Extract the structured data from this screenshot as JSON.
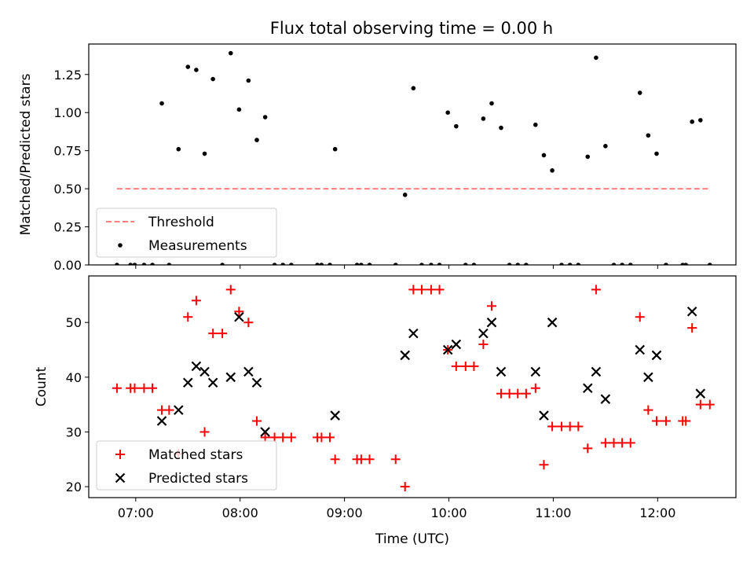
{
  "title": "Flux total observing time = 0.00 h",
  "chart_data": [
    {
      "type": "scatter",
      "ylabel": "Matched/Predicted stars",
      "xlim": [
        6.55,
        12.75
      ],
      "ylim": [
        0,
        1.45
      ],
      "yticks": [
        0.0,
        0.25,
        0.5,
        0.75,
        1.0,
        1.25
      ],
      "ytick_labels": [
        "0.00",
        "0.25",
        "0.50",
        "0.75",
        "1.00",
        "1.25"
      ],
      "legend": {
        "position": "lower-left",
        "entries": [
          "Threshold",
          "Measurements"
        ]
      },
      "threshold": {
        "name": "Threshold",
        "value": 0.5,
        "x_range": [
          6.82,
          12.5
        ],
        "color": "#ff7f7f"
      },
      "series": [
        {
          "name": "Measurements",
          "color": "#000000",
          "points": [
            [
              6.82,
              0
            ],
            [
              6.95,
              0
            ],
            [
              6.99,
              0
            ],
            [
              7.08,
              0
            ],
            [
              7.16,
              0
            ],
            [
              7.25,
              1.06
            ],
            [
              7.32,
              0
            ],
            [
              7.41,
              0.76
            ],
            [
              7.5,
              1.3
            ],
            [
              7.58,
              1.28
            ],
            [
              7.66,
              0.73
            ],
            [
              7.74,
              1.22
            ],
            [
              7.83,
              0
            ],
            [
              7.91,
              1.39
            ],
            [
              7.99,
              1.02
            ],
            [
              8.08,
              1.21
            ],
            [
              8.16,
              0.82
            ],
            [
              8.24,
              0.97
            ],
            [
              8.33,
              0
            ],
            [
              8.41,
              0
            ],
            [
              8.49,
              0
            ],
            [
              8.74,
              0
            ],
            [
              8.78,
              0
            ],
            [
              8.86,
              0
            ],
            [
              8.91,
              0.76
            ],
            [
              9.12,
              0
            ],
            [
              9.16,
              0
            ],
            [
              9.24,
              0
            ],
            [
              9.49,
              0
            ],
            [
              9.58,
              0.46
            ],
            [
              9.66,
              1.16
            ],
            [
              9.74,
              0
            ],
            [
              9.83,
              0
            ],
            [
              9.91,
              0
            ],
            [
              9.99,
              1.0
            ],
            [
              10.07,
              0.91
            ],
            [
              10.16,
              0
            ],
            [
              10.24,
              0
            ],
            [
              10.33,
              0.96
            ],
            [
              10.41,
              1.06
            ],
            [
              10.5,
              0.9
            ],
            [
              10.58,
              0
            ],
            [
              10.66,
              0
            ],
            [
              10.74,
              0
            ],
            [
              10.83,
              0.92
            ],
            [
              10.91,
              0.72
            ],
            [
              10.99,
              0.62
            ],
            [
              11.08,
              0
            ],
            [
              11.16,
              0
            ],
            [
              11.24,
              0
            ],
            [
              11.33,
              0.71
            ],
            [
              11.41,
              1.36
            ],
            [
              11.5,
              0.78
            ],
            [
              11.58,
              0
            ],
            [
              11.66,
              0
            ],
            [
              11.74,
              0
            ],
            [
              11.83,
              1.13
            ],
            [
              11.91,
              0.85
            ],
            [
              11.99,
              0.73
            ],
            [
              12.08,
              0
            ],
            [
              12.24,
              0
            ],
            [
              12.27,
              0
            ],
            [
              12.33,
              0.94
            ],
            [
              12.41,
              0.95
            ],
            [
              12.5,
              0
            ]
          ]
        }
      ]
    },
    {
      "type": "scatter",
      "xlabel": "Time (UTC)",
      "ylabel": "Count",
      "xlim": [
        6.55,
        12.75
      ],
      "ylim": [
        18,
        58.5
      ],
      "xticks": [
        7,
        8,
        9,
        10,
        11,
        12
      ],
      "xtick_labels": [
        "07:00",
        "08:00",
        "09:00",
        "10:00",
        "11:00",
        "12:00"
      ],
      "yticks": [
        20,
        30,
        40,
        50
      ],
      "ytick_labels": [
        "20",
        "30",
        "40",
        "50"
      ],
      "legend": {
        "position": "lower-left",
        "entries": [
          "Matched stars",
          "Predicted stars"
        ]
      },
      "series": [
        {
          "name": "Matched stars",
          "color": "#ff0000",
          "marker": "plus",
          "points": [
            [
              6.82,
              38
            ],
            [
              6.95,
              38
            ],
            [
              6.99,
              38
            ],
            [
              7.08,
              38
            ],
            [
              7.16,
              38
            ],
            [
              7.25,
              34
            ],
            [
              7.32,
              34
            ],
            [
              7.41,
              26
            ],
            [
              7.5,
              51
            ],
            [
              7.58,
              54
            ],
            [
              7.66,
              30
            ],
            [
              7.74,
              48
            ],
            [
              7.83,
              48
            ],
            [
              7.91,
              56
            ],
            [
              7.99,
              52
            ],
            [
              8.08,
              50
            ],
            [
              8.16,
              32
            ],
            [
              8.24,
              29
            ],
            [
              8.33,
              29
            ],
            [
              8.41,
              29
            ],
            [
              8.49,
              29
            ],
            [
              8.74,
              29
            ],
            [
              8.78,
              29
            ],
            [
              8.86,
              29
            ],
            [
              8.91,
              25
            ],
            [
              9.12,
              25
            ],
            [
              9.16,
              25
            ],
            [
              9.24,
              25
            ],
            [
              9.49,
              25
            ],
            [
              9.58,
              20
            ],
            [
              9.66,
              56
            ],
            [
              9.74,
              56
            ],
            [
              9.83,
              56
            ],
            [
              9.91,
              56
            ],
            [
              9.99,
              45
            ],
            [
              10.07,
              42
            ],
            [
              10.16,
              42
            ],
            [
              10.24,
              42
            ],
            [
              10.33,
              46
            ],
            [
              10.41,
              53
            ],
            [
              10.5,
              37
            ],
            [
              10.58,
              37
            ],
            [
              10.66,
              37
            ],
            [
              10.74,
              37
            ],
            [
              10.83,
              38
            ],
            [
              10.91,
              24
            ],
            [
              10.99,
              31
            ],
            [
              11.08,
              31
            ],
            [
              11.16,
              31
            ],
            [
              11.24,
              31
            ],
            [
              11.33,
              27
            ],
            [
              11.41,
              56
            ],
            [
              11.5,
              28
            ],
            [
              11.58,
              28
            ],
            [
              11.66,
              28
            ],
            [
              11.74,
              28
            ],
            [
              11.83,
              51
            ],
            [
              11.91,
              34
            ],
            [
              11.99,
              32
            ],
            [
              12.08,
              32
            ],
            [
              12.24,
              32
            ],
            [
              12.27,
              32
            ],
            [
              12.33,
              49
            ],
            [
              12.41,
              35
            ],
            [
              12.5,
              35
            ]
          ]
        },
        {
          "name": "Predicted stars",
          "color": "#000000",
          "marker": "x",
          "points": [
            [
              7.25,
              32
            ],
            [
              7.41,
              34
            ],
            [
              7.5,
              39
            ],
            [
              7.58,
              42
            ],
            [
              7.66,
              41
            ],
            [
              7.74,
              39
            ],
            [
              7.91,
              40
            ],
            [
              7.99,
              51
            ],
            [
              8.08,
              41
            ],
            [
              8.16,
              39
            ],
            [
              8.24,
              30
            ],
            [
              8.91,
              33
            ],
            [
              9.58,
              44
            ],
            [
              9.66,
              48
            ],
            [
              9.99,
              45
            ],
            [
              10.07,
              46
            ],
            [
              10.33,
              48
            ],
            [
              10.41,
              50
            ],
            [
              10.5,
              41
            ],
            [
              10.83,
              41
            ],
            [
              10.91,
              33
            ],
            [
              10.99,
              50
            ],
            [
              11.33,
              38
            ],
            [
              11.41,
              41
            ],
            [
              11.5,
              36
            ],
            [
              11.83,
              45
            ],
            [
              11.91,
              40
            ],
            [
              11.99,
              44
            ],
            [
              12.33,
              52
            ],
            [
              12.41,
              37
            ]
          ]
        }
      ]
    }
  ]
}
